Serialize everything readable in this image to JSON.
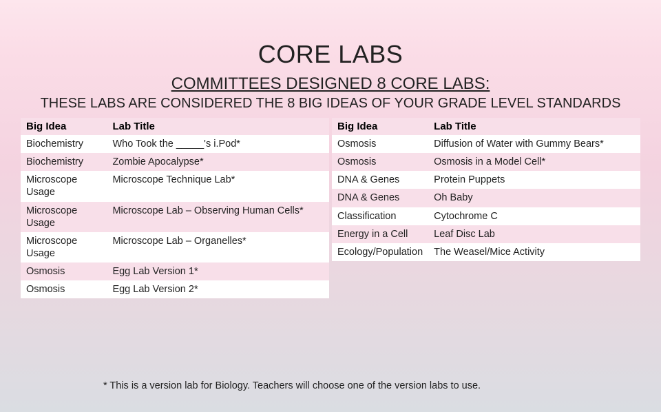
{
  "title": "CORE LABS",
  "subtitle": "COMMITTEES DESIGNED 8 CORE LABS:",
  "subtext": "THESE LABS ARE CONSIDERED THE 8 BIG IDEAS OF YOUR GRADE LEVEL STANDARDS",
  "footnote": "* This is a version lab for Biology. Teachers will choose one of the version labs to use.",
  "headers": {
    "idea": "Big Idea",
    "title": "Lab Title"
  },
  "left": [
    {
      "idea": "Biochemistry",
      "title": "Who Took the _____'s i.Pod*"
    },
    {
      "idea": "Biochemistry",
      "title": "Zombie Apocalypse*"
    },
    {
      "idea": "Microscope Usage",
      "title": "Microscope Technique Lab*"
    },
    {
      "idea": "Microscope Usage",
      "title": "Microscope Lab – Observing Human Cells*"
    },
    {
      "idea": "Microscope Usage",
      "title": "Microscope Lab – Organelles*"
    },
    {
      "idea": "Osmosis",
      "title": "Egg Lab Version 1*"
    },
    {
      "idea": "Osmosis",
      "title": "Egg Lab Version 2*"
    }
  ],
  "right": [
    {
      "idea": "Osmosis",
      "title": "Diffusion of Water with Gummy Bears*"
    },
    {
      "idea": "Osmosis",
      "title": "Osmosis in a Model Cell*"
    },
    {
      "idea": "DNA & Genes",
      "title": "Protein Puppets"
    },
    {
      "idea": "DNA & Genes",
      "title": "Oh Baby"
    },
    {
      "idea": "Classification",
      "title": "Cytochrome C"
    },
    {
      "idea": "Energy in a Cell",
      "title": "Leaf Disc Lab"
    },
    {
      "idea": "Ecology/Population",
      "title": "The Weasel/Mice Activity"
    }
  ]
}
